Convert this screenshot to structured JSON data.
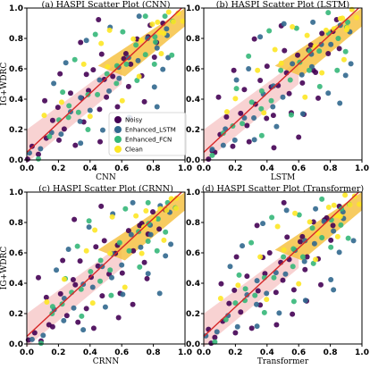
{
  "chart_data": [
    {
      "type": "scatter",
      "title": "(a) HASPI Scatter Plot (CNN)",
      "xlabel": "CNN",
      "ylabel": "IG+WDRC",
      "xlim": [
        0,
        1
      ],
      "ylim": [
        0,
        1
      ],
      "xticks": [
        "0.0",
        "0.2",
        "0.4",
        "0.6",
        "0.8",
        "1.0"
      ],
      "yticks": [
        "0.0",
        "0.2",
        "0.4",
        "0.6",
        "0.8",
        "1.0"
      ],
      "legend": {
        "placement": "lower-center",
        "entries": [
          "Noisy",
          "Enhanced_LSTM",
          "Enhanced_FCN",
          "Clean"
        ]
      }
    },
    {
      "type": "scatter",
      "title": "(b) HASPI Scatter Plot (LSTM)",
      "xlabel": "LSTM",
      "ylabel": "",
      "xlim": [
        0,
        1
      ],
      "ylim": [
        0,
        1
      ],
      "xticks": [
        "0.0",
        "0.2",
        "0.4",
        "0.6",
        "0.8",
        "1.0"
      ],
      "yticks": [
        "0.0",
        "0.2",
        "0.4",
        "0.6",
        "0.8",
        "1.0"
      ]
    },
    {
      "type": "scatter",
      "title": "(c) HASPI Scatter Plot (CRNN)",
      "xlabel": "CRNN",
      "ylabel": "IG+WDRC",
      "xlim": [
        0,
        1
      ],
      "ylim": [
        0,
        1
      ],
      "xticks": [
        "0.0",
        "0.2",
        "0.4",
        "0.6",
        "0.8",
        "1.0"
      ],
      "yticks": [
        "0.0",
        "0.2",
        "0.4",
        "0.6",
        "0.8",
        "1.0"
      ]
    },
    {
      "type": "scatter",
      "title": "(d) HASPI Scatter Plot (Transformer)",
      "xlabel": "Transformer",
      "ylabel": "",
      "xlim": [
        0,
        1
      ],
      "ylim": [
        0,
        1
      ],
      "xticks": [
        "0.0",
        "0.2",
        "0.4",
        "0.6",
        "0.8",
        "1.0"
      ],
      "yticks": [
        "0.0",
        "0.2",
        "0.4",
        "0.6",
        "0.8",
        "1.0"
      ]
    }
  ],
  "series": [
    {
      "name": "Noisy",
      "color": "#440154"
    },
    {
      "name": "Enhanced_LSTM",
      "color": "#31688e"
    },
    {
      "name": "Enhanced_FCN",
      "color": "#35b779"
    },
    {
      "name": "Clean",
      "color": "#fde725"
    }
  ],
  "regression": {
    "color": "#d62728",
    "band_color": "#f4b4b4",
    "line": [
      [
        0,
        0.05
      ],
      [
        1,
        1.02
      ]
    ]
  },
  "dense_band_color": "#f6c244",
  "points": [
    [
      0.02,
      0.01,
      0
    ],
    [
      0.05,
      0.07,
      0
    ],
    [
      0.08,
      0.03,
      0
    ],
    [
      0.12,
      0.15,
      0
    ],
    [
      0.15,
      0.28,
      0
    ],
    [
      0.18,
      0.1,
      0
    ],
    [
      0.22,
      0.33,
      0
    ],
    [
      0.25,
      0.2,
      0
    ],
    [
      0.28,
      0.45,
      0
    ],
    [
      0.3,
      0.12,
      0
    ],
    [
      0.33,
      0.38,
      0
    ],
    [
      0.35,
      0.55,
      0
    ],
    [
      0.38,
      0.25,
      0
    ],
    [
      0.4,
      0.47,
      0
    ],
    [
      0.42,
      0.62,
      0
    ],
    [
      0.45,
      0.31,
      0
    ],
    [
      0.47,
      0.52,
      0
    ],
    [
      0.5,
      0.7,
      0
    ],
    [
      0.52,
      0.43,
      0
    ],
    [
      0.55,
      0.58,
      0
    ],
    [
      0.57,
      0.33,
      0
    ],
    [
      0.6,
      0.66,
      0
    ],
    [
      0.62,
      0.49,
      0
    ],
    [
      0.65,
      0.72,
      0
    ],
    [
      0.67,
      0.6,
      0
    ],
    [
      0.7,
      0.78,
      0
    ],
    [
      0.72,
      0.55,
      0
    ],
    [
      0.75,
      0.82,
      0
    ],
    [
      0.78,
      0.7,
      0
    ],
    [
      0.8,
      0.86,
      0
    ],
    [
      0.83,
      0.76,
      0
    ],
    [
      0.86,
      0.9,
      0
    ],
    [
      0.2,
      0.58,
      0
    ],
    [
      0.32,
      0.8,
      0
    ],
    [
      0.48,
      0.9,
      0
    ],
    [
      0.58,
      0.18,
      0
    ],
    [
      0.66,
      0.28,
      0
    ],
    [
      0.74,
      0.4,
      0
    ],
    [
      0.1,
      0.42,
      0
    ],
    [
      0.44,
      0.1,
      0
    ],
    [
      0.04,
      0.04,
      1
    ],
    [
      0.1,
      0.08,
      1
    ],
    [
      0.16,
      0.2,
      1
    ],
    [
      0.21,
      0.14,
      1
    ],
    [
      0.26,
      0.3,
      1
    ],
    [
      0.31,
      0.25,
      1
    ],
    [
      0.36,
      0.42,
      1
    ],
    [
      0.41,
      0.35,
      1
    ],
    [
      0.46,
      0.5,
      1
    ],
    [
      0.51,
      0.44,
      1
    ],
    [
      0.56,
      0.61,
      1
    ],
    [
      0.61,
      0.55,
      1
    ],
    [
      0.66,
      0.7,
      1
    ],
    [
      0.71,
      0.63,
      1
    ],
    [
      0.76,
      0.79,
      1
    ],
    [
      0.81,
      0.74,
      1
    ],
    [
      0.86,
      0.88,
      1
    ],
    [
      0.91,
      0.85,
      1
    ],
    [
      0.26,
      0.62,
      1
    ],
    [
      0.38,
      0.78,
      1
    ],
    [
      0.52,
      0.88,
      1
    ],
    [
      0.63,
      0.3,
      1
    ],
    [
      0.78,
      0.45,
      1
    ],
    [
      0.88,
      0.58,
      1
    ],
    [
      0.18,
      0.5,
      1
    ],
    [
      0.34,
      0.12,
      1
    ],
    [
      0.47,
      0.22,
      1
    ],
    [
      0.69,
      0.92,
      1
    ],
    [
      0.92,
      0.66,
      1
    ],
    [
      0.84,
      0.35,
      1
    ],
    [
      0.08,
      0.02,
      2
    ],
    [
      0.14,
      0.18,
      2
    ],
    [
      0.19,
      0.24,
      2
    ],
    [
      0.24,
      0.27,
      2
    ],
    [
      0.29,
      0.36,
      2
    ],
    [
      0.34,
      0.33,
      2
    ],
    [
      0.39,
      0.46,
      2
    ],
    [
      0.44,
      0.41,
      2
    ],
    [
      0.49,
      0.56,
      2
    ],
    [
      0.54,
      0.51,
      2
    ],
    [
      0.59,
      0.64,
      2
    ],
    [
      0.64,
      0.6,
      2
    ],
    [
      0.69,
      0.74,
      2
    ],
    [
      0.74,
      0.69,
      2
    ],
    [
      0.79,
      0.82,
      2
    ],
    [
      0.84,
      0.8,
      2
    ],
    [
      0.89,
      0.92,
      2
    ],
    [
      0.93,
      0.9,
      2
    ],
    [
      0.3,
      0.66,
      2
    ],
    [
      0.42,
      0.84,
      2
    ],
    [
      0.55,
      0.3,
      2
    ],
    [
      0.72,
      0.5,
      2
    ],
    [
      0.82,
      0.62,
      2
    ],
    [
      0.23,
      0.45,
      2
    ],
    [
      0.6,
      0.86,
      2
    ],
    [
      0.9,
      0.72,
      2
    ],
    [
      0.36,
      0.18,
      2
    ],
    [
      0.77,
      0.94,
      2
    ],
    [
      0.12,
      0.3,
      3
    ],
    [
      0.22,
      0.4,
      3
    ],
    [
      0.35,
      0.6,
      3
    ],
    [
      0.45,
      0.75,
      3
    ],
    [
      0.55,
      0.85,
      3
    ],
    [
      0.62,
      0.4,
      3
    ],
    [
      0.68,
      0.82,
      3
    ],
    [
      0.72,
      0.76,
      3
    ],
    [
      0.78,
      0.88,
      3
    ],
    [
      0.82,
      0.84,
      3
    ],
    [
      0.85,
      0.92,
      3
    ],
    [
      0.88,
      0.86,
      3
    ],
    [
      0.9,
      0.95,
      3
    ],
    [
      0.92,
      0.9,
      3
    ],
    [
      0.94,
      0.97,
      3
    ],
    [
      0.96,
      0.93,
      3
    ],
    [
      0.73,
      0.58,
      3
    ],
    [
      0.86,
      0.68,
      3
    ],
    [
      0.4,
      0.28,
      3
    ],
    [
      0.5,
      0.62,
      3
    ]
  ]
}
